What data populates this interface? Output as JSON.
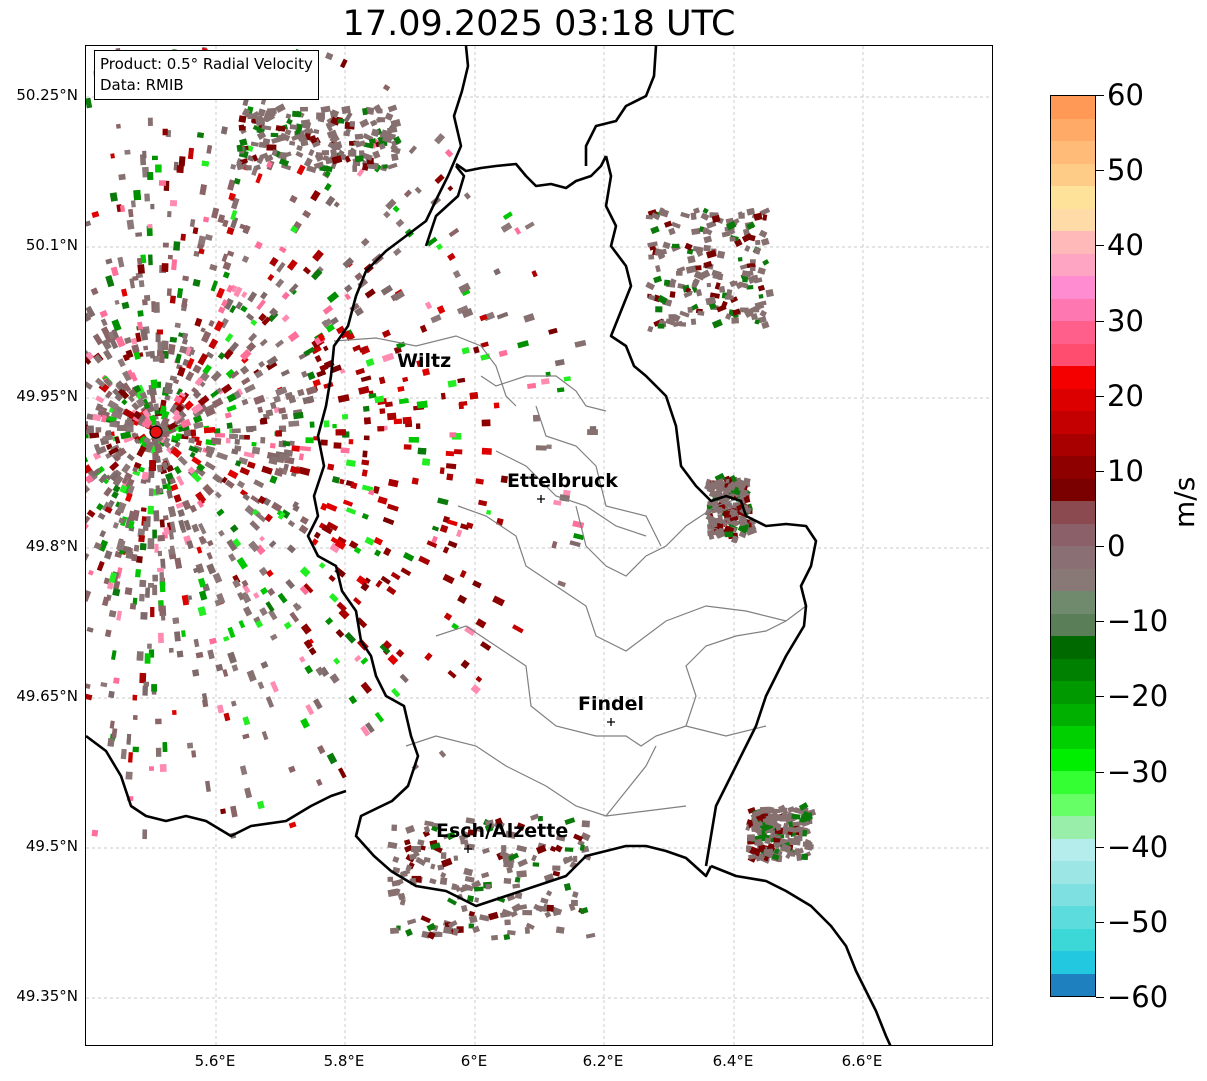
{
  "title": "17.09.2025 03:18 UTC",
  "info_box": {
    "product": "Product: 0.5° Radial Velocity",
    "data": "Data: RMIB"
  },
  "latitude_labels": [
    "50.25°N",
    "50.1°N",
    "49.95°N",
    "49.8°N",
    "49.65°N",
    "49.5°N",
    "49.35°N"
  ],
  "longitude_labels": [
    "5.6°E",
    "5.8°E",
    "6°E",
    "6.2°E",
    "6.4°E",
    "6.6°E"
  ],
  "cities": [
    {
      "name": "Wiltz"
    },
    {
      "name": "Ettelbruck"
    },
    {
      "name": "Findel"
    },
    {
      "name": "Esch/Alzette"
    }
  ],
  "colorbar": {
    "unit": "m/s",
    "min": -60,
    "max": 60,
    "ticks": [
      "60",
      "50",
      "40",
      "30",
      "20",
      "10",
      "0",
      "−10",
      "−20",
      "−30",
      "−40",
      "−50",
      "−60"
    ],
    "colors": [
      "#ff9955",
      "#ffaa66",
      "#ffbb77",
      "#ffcc88",
      "#ffe299",
      "#ffdba8",
      "#ffb9b9",
      "#ffa5c4",
      "#ff8bd0",
      "#ff77b0",
      "#ff5f8a",
      "#ff4d70",
      "#f50000",
      "#dd0000",
      "#c40000",
      "#a80000",
      "#8e0000",
      "#7a0000",
      "#8a4a50",
      "#8c6068",
      "#8a7074",
      "#887876",
      "#6f8a6c",
      "#5a7e58",
      "#006a00",
      "#008000",
      "#009900",
      "#00b000",
      "#00d000",
      "#00ee00",
      "#33ff33",
      "#66ff66",
      "#99eeaa",
      "#b5ecec",
      "#9ce6e6",
      "#7ee0e0",
      "#5cdcdc",
      "#3cd8d8",
      "#22c8e0",
      "#1f80c0"
    ]
  },
  "radar_site": {
    "color": "#e81010"
  }
}
